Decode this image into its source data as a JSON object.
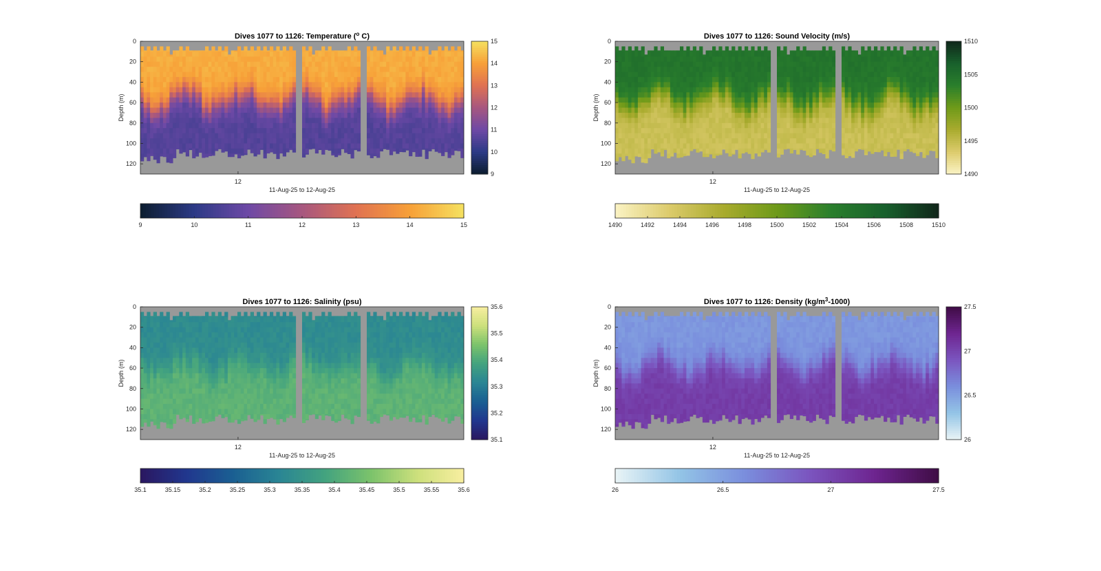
{
  "chart_data": [
    {
      "type": "heatmap",
      "title_main": "Dives 1077 to 1126: Temperature (",
      "title_sup": "o",
      "title_tail": " C)",
      "xlabel": "11-Aug-25 to 12-Aug-25",
      "ylabel": "Depth (m)",
      "x_ticks": [
        "12"
      ],
      "y_ticks": [
        0,
        20,
        40,
        60,
        80,
        100,
        120
      ],
      "ylim": [
        0,
        130
      ],
      "clim": [
        9,
        15
      ],
      "colorbar_ticks": [
        "15",
        "14",
        "13",
        "12",
        "11",
        "10",
        "9"
      ],
      "h_colorbar_ticks": [
        "9",
        "10",
        "11",
        "12",
        "13",
        "14",
        "15"
      ],
      "colormap": [
        "#0c1d2f",
        "#2c3a86",
        "#6e49a6",
        "#a7577f",
        "#e07252",
        "#f7a038",
        "#f5e160"
      ],
      "surface_value": 14.2,
      "bottom_value": 10.6,
      "grid": false
    },
    {
      "type": "heatmap",
      "title_main": "Dives 1077 to 1126: Sound Velocity (m/s)",
      "title_sup": "",
      "title_tail": "",
      "xlabel": "11-Aug-25 to 12-Aug-25",
      "ylabel": "Depth (m)",
      "x_ticks": [
        "12"
      ],
      "y_ticks": [
        0,
        20,
        40,
        60,
        80,
        100,
        120
      ],
      "ylim": [
        0,
        130
      ],
      "clim": [
        1490,
        1510
      ],
      "colorbar_ticks": [
        "1510",
        "1505",
        "1500",
        "1495",
        "1490"
      ],
      "h_colorbar_ticks": [
        "1490",
        "1492",
        "1494",
        "1496",
        "1498",
        "1500",
        "1502",
        "1504",
        "1506",
        "1508",
        "1510"
      ],
      "colormap": [
        "#fbf3c4",
        "#dccb6c",
        "#a9ab2e",
        "#6e9a19",
        "#2a7f2c",
        "#18602c",
        "#10261a"
      ],
      "surface_value": 1504.5,
      "bottom_value": 1494.5,
      "grid": false
    },
    {
      "type": "heatmap",
      "title_main": "Dives 1077 to 1126: Salinity (psu)",
      "title_sup": "",
      "title_tail": "",
      "xlabel": "11-Aug-25 to 12-Aug-25",
      "ylabel": "Depth (m)",
      "x_ticks": [
        "12"
      ],
      "y_ticks": [
        0,
        20,
        40,
        60,
        80,
        100,
        120
      ],
      "ylim": [
        0,
        130
      ],
      "clim": [
        35.1,
        35.6
      ],
      "colorbar_ticks": [
        "35.6",
        "35.5",
        "35.4",
        "35.3",
        "35.2",
        "35.1"
      ],
      "h_colorbar_ticks": [
        "35.1",
        "35.15",
        "35.2",
        "35.25",
        "35.3",
        "35.35",
        "35.4",
        "35.45",
        "35.5",
        "35.55",
        "35.6"
      ],
      "colormap": [
        "#2a1760",
        "#21378e",
        "#1a5f92",
        "#2a8594",
        "#43a37f",
        "#7cc36b",
        "#cde07c",
        "#f8eea0"
      ],
      "surface_value": 35.33,
      "bottom_value": 35.42,
      "grid": false
    },
    {
      "type": "heatmap",
      "title_main": "Dives 1077 to 1126: Density (kg/m",
      "title_sup": "3",
      "title_tail": "-1000)",
      "xlabel": "11-Aug-25 to 12-Aug-25",
      "ylabel": "Depth (m)",
      "x_ticks": [
        "12"
      ],
      "y_ticks": [
        0,
        20,
        40,
        60,
        80,
        100,
        120
      ],
      "ylim": [
        0,
        130
      ],
      "clim": [
        26,
        27.5
      ],
      "colorbar_ticks": [
        "27.5",
        "27",
        "26.5",
        "26"
      ],
      "h_colorbar_ticks": [
        "26",
        "26.5",
        "27",
        "27.5"
      ],
      "colormap": [
        "#e9f4f6",
        "#93c4e6",
        "#7a8edd",
        "#7b55bf",
        "#6e2590",
        "#3f0c45"
      ],
      "surface_value": 26.55,
      "bottom_value": 27.05,
      "grid": false
    }
  ],
  "colors": {
    "no_data": "#999999",
    "axis": "#262626",
    "background": "#ffffff"
  }
}
